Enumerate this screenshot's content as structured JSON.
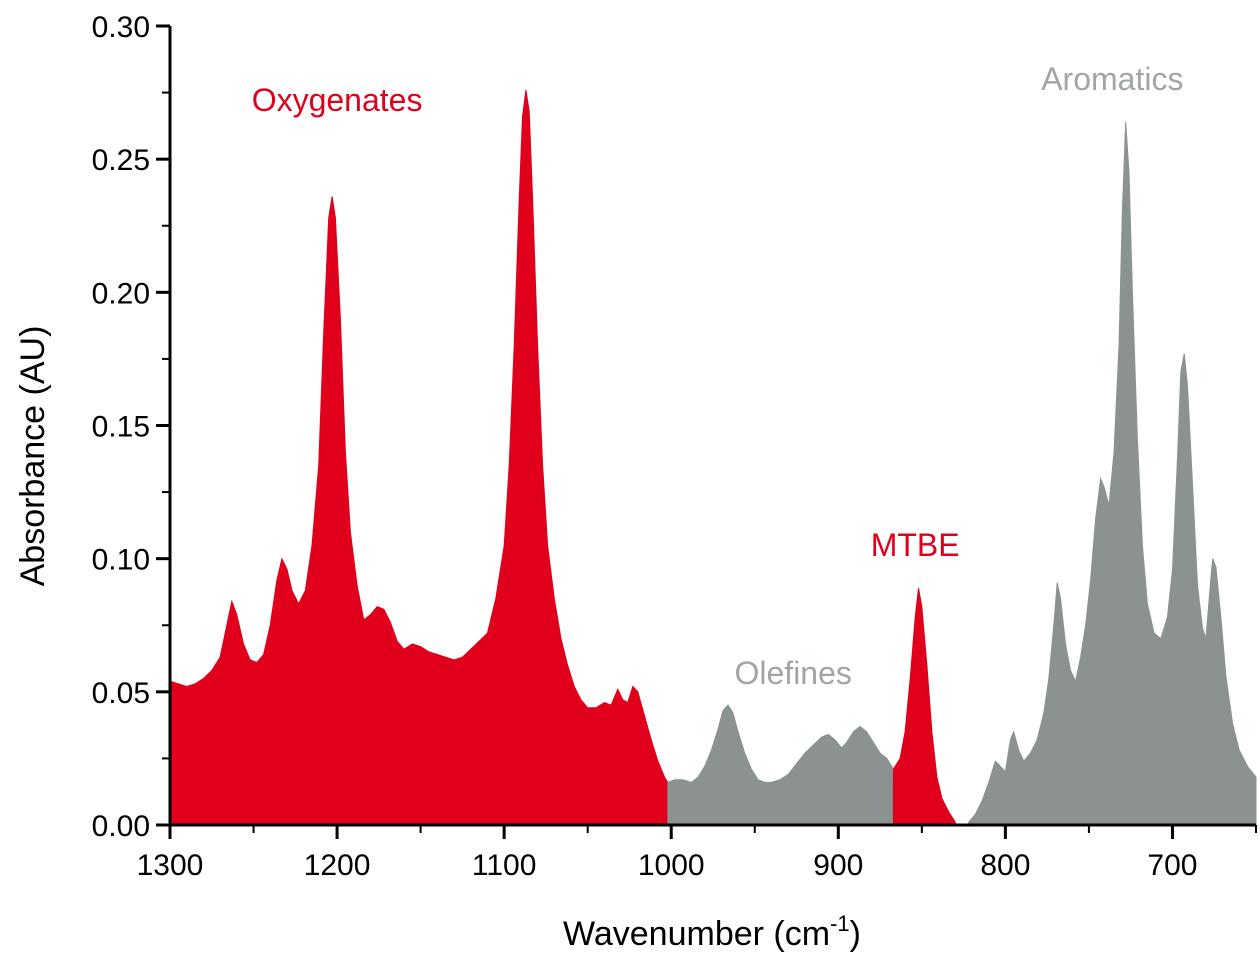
{
  "chart_data": {
    "type": "area",
    "title": "",
    "xlabel": "Wavenumber (cm",
    "xlabel_superscript": "-1",
    "xlabel_suffix": ")",
    "ylabel": "Absorbance (AU)",
    "xlim": [
      1300,
      650
    ],
    "ylim": [
      0,
      0.3
    ],
    "x_reversed": true,
    "x_ticks": [
      1300,
      1200,
      1100,
      1000,
      900,
      800,
      700
    ],
    "x_tick_labels": [
      "1300",
      "1200",
      "1100",
      "1000",
      "900",
      "800",
      "700"
    ],
    "y_ticks": [
      0,
      0.05,
      0.1,
      0.15,
      0.2,
      0.25,
      0.3
    ],
    "y_tick_labels": [
      "0.00",
      "0.05",
      "0.10",
      "0.15",
      "0.20",
      "0.25",
      "0.30"
    ],
    "grid": false,
    "series": [
      {
        "name": "Oxygenates",
        "color": "#e0001b",
        "points": [
          [
            1300,
            0.054
          ],
          [
            1295,
            0.053
          ],
          [
            1290,
            0.052
          ],
          [
            1285,
            0.053
          ],
          [
            1280,
            0.055
          ],
          [
            1275,
            0.058
          ],
          [
            1270,
            0.063
          ],
          [
            1266,
            0.075
          ],
          [
            1263,
            0.084
          ],
          [
            1260,
            0.079
          ],
          [
            1256,
            0.068
          ],
          [
            1252,
            0.062
          ],
          [
            1248,
            0.061
          ],
          [
            1244,
            0.064
          ],
          [
            1240,
            0.075
          ],
          [
            1236,
            0.092
          ],
          [
            1233,
            0.1
          ],
          [
            1230,
            0.096
          ],
          [
            1227,
            0.088
          ],
          [
            1223,
            0.083
          ],
          [
            1219,
            0.088
          ],
          [
            1215,
            0.105
          ],
          [
            1211,
            0.135
          ],
          [
            1208,
            0.185
          ],
          [
            1205,
            0.228
          ],
          [
            1203,
            0.236
          ],
          [
            1201,
            0.228
          ],
          [
            1198,
            0.19
          ],
          [
            1195,
            0.14
          ],
          [
            1192,
            0.11
          ],
          [
            1188,
            0.09
          ],
          [
            1184,
            0.077
          ],
          [
            1180,
            0.079
          ],
          [
            1176,
            0.082
          ],
          [
            1172,
            0.081
          ],
          [
            1168,
            0.076
          ],
          [
            1164,
            0.069
          ],
          [
            1160,
            0.066
          ],
          [
            1155,
            0.068
          ],
          [
            1150,
            0.067
          ],
          [
            1145,
            0.065
          ],
          [
            1140,
            0.064
          ],
          [
            1135,
            0.063
          ],
          [
            1130,
            0.062
          ],
          [
            1125,
            0.063
          ],
          [
            1120,
            0.066
          ],
          [
            1115,
            0.069
          ],
          [
            1110,
            0.072
          ],
          [
            1105,
            0.085
          ],
          [
            1100,
            0.105
          ],
          [
            1097,
            0.135
          ],
          [
            1094,
            0.18
          ],
          [
            1091,
            0.235
          ],
          [
            1089,
            0.266
          ],
          [
            1087,
            0.276
          ],
          [
            1085,
            0.268
          ],
          [
            1083,
            0.235
          ],
          [
            1080,
            0.18
          ],
          [
            1077,
            0.135
          ],
          [
            1074,
            0.105
          ],
          [
            1070,
            0.085
          ],
          [
            1066,
            0.07
          ],
          [
            1062,
            0.06
          ],
          [
            1058,
            0.052
          ],
          [
            1054,
            0.047
          ],
          [
            1050,
            0.044
          ],
          [
            1045,
            0.044
          ],
          [
            1040,
            0.046
          ],
          [
            1036,
            0.045
          ],
          [
            1032,
            0.051
          ],
          [
            1029,
            0.047
          ],
          [
            1026,
            0.046
          ],
          [
            1023,
            0.052
          ],
          [
            1020,
            0.05
          ],
          [
            1016,
            0.041
          ],
          [
            1012,
            0.032
          ],
          [
            1008,
            0.024
          ],
          [
            1004,
            0.018
          ],
          [
            1002,
            0.016
          ]
        ]
      },
      {
        "name": "Olefines",
        "color": "#8c9191",
        "points": [
          [
            1002,
            0.016
          ],
          [
            998,
            0.017
          ],
          [
            993,
            0.017
          ],
          [
            988,
            0.016
          ],
          [
            984,
            0.018
          ],
          [
            980,
            0.022
          ],
          [
            976,
            0.028
          ],
          [
            972,
            0.036
          ],
          [
            969,
            0.043
          ],
          [
            966,
            0.045
          ],
          [
            963,
            0.042
          ],
          [
            960,
            0.035
          ],
          [
            956,
            0.027
          ],
          [
            952,
            0.021
          ],
          [
            948,
            0.017
          ],
          [
            944,
            0.016
          ],
          [
            940,
            0.016
          ],
          [
            935,
            0.017
          ],
          [
            930,
            0.019
          ],
          [
            925,
            0.023
          ],
          [
            920,
            0.027
          ],
          [
            915,
            0.03
          ],
          [
            910,
            0.033
          ],
          [
            906,
            0.034
          ],
          [
            902,
            0.032
          ],
          [
            898,
            0.029
          ],
          [
            895,
            0.031
          ],
          [
            891,
            0.035
          ],
          [
            887,
            0.037
          ],
          [
            883,
            0.035
          ],
          [
            879,
            0.031
          ],
          [
            875,
            0.027
          ],
          [
            871,
            0.025
          ],
          [
            867,
            0.021
          ]
        ]
      },
      {
        "name": "MTBE",
        "color": "#e0001b",
        "points": [
          [
            867,
            0.021
          ],
          [
            863,
            0.025
          ],
          [
            860,
            0.035
          ],
          [
            857,
            0.055
          ],
          [
            854,
            0.078
          ],
          [
            852,
            0.089
          ],
          [
            850,
            0.082
          ],
          [
            847,
            0.06
          ],
          [
            844,
            0.035
          ],
          [
            841,
            0.018
          ],
          [
            838,
            0.01
          ],
          [
            834,
            0.005
          ],
          [
            830,
            0.001
          ]
        ]
      },
      {
        "name": "Aromatics",
        "color": "#8c9191",
        "points": [
          [
            822,
            0.001
          ],
          [
            818,
            0.004
          ],
          [
            814,
            0.009
          ],
          [
            810,
            0.016
          ],
          [
            806,
            0.024
          ],
          [
            803,
            0.022
          ],
          [
            800,
            0.02
          ],
          [
            797,
            0.032
          ],
          [
            795,
            0.035
          ],
          [
            792,
            0.028
          ],
          [
            789,
            0.024
          ],
          [
            785,
            0.027
          ],
          [
            781,
            0.032
          ],
          [
            777,
            0.042
          ],
          [
            774,
            0.055
          ],
          [
            771,
            0.075
          ],
          [
            769,
            0.091
          ],
          [
            767,
            0.085
          ],
          [
            764,
            0.068
          ],
          [
            761,
            0.058
          ],
          [
            758,
            0.054
          ],
          [
            755,
            0.063
          ],
          [
            752,
            0.075
          ],
          [
            749,
            0.092
          ],
          [
            746,
            0.115
          ],
          [
            743,
            0.13
          ],
          [
            741,
            0.127
          ],
          [
            738,
            0.12
          ],
          [
            735,
            0.14
          ],
          [
            732,
            0.18
          ],
          [
            730,
            0.23
          ],
          [
            728,
            0.264
          ],
          [
            726,
            0.245
          ],
          [
            724,
            0.2
          ],
          [
            721,
            0.145
          ],
          [
            718,
            0.105
          ],
          [
            715,
            0.083
          ],
          [
            711,
            0.072
          ],
          [
            707,
            0.07
          ],
          [
            703,
            0.078
          ],
          [
            700,
            0.096
          ],
          [
            697,
            0.138
          ],
          [
            695,
            0.17
          ],
          [
            693,
            0.177
          ],
          [
            691,
            0.165
          ],
          [
            688,
            0.128
          ],
          [
            685,
            0.09
          ],
          [
            682,
            0.074
          ],
          [
            680,
            0.07
          ],
          [
            678,
            0.085
          ],
          [
            676,
            0.1
          ],
          [
            674,
            0.097
          ],
          [
            671,
            0.078
          ],
          [
            668,
            0.056
          ],
          [
            664,
            0.038
          ],
          [
            660,
            0.028
          ],
          [
            655,
            0.022
          ],
          [
            650,
            0.018
          ]
        ]
      }
    ],
    "annotations": [
      {
        "text": "Oxygenates",
        "x": 1200,
        "y": 0.268,
        "color": "#e0001b",
        "anchor": "middle"
      },
      {
        "text": "Olefines",
        "x": 927,
        "y": 0.053,
        "color": "#a0a5a5",
        "anchor": "middle"
      },
      {
        "text": "MTBE",
        "x": 854,
        "y": 0.101,
        "color": "#e0001b",
        "anchor": "middle"
      },
      {
        "text": "Aromatics",
        "x": 736,
        "y": 0.276,
        "color": "#a0a5a5",
        "anchor": "middle"
      }
    ]
  }
}
